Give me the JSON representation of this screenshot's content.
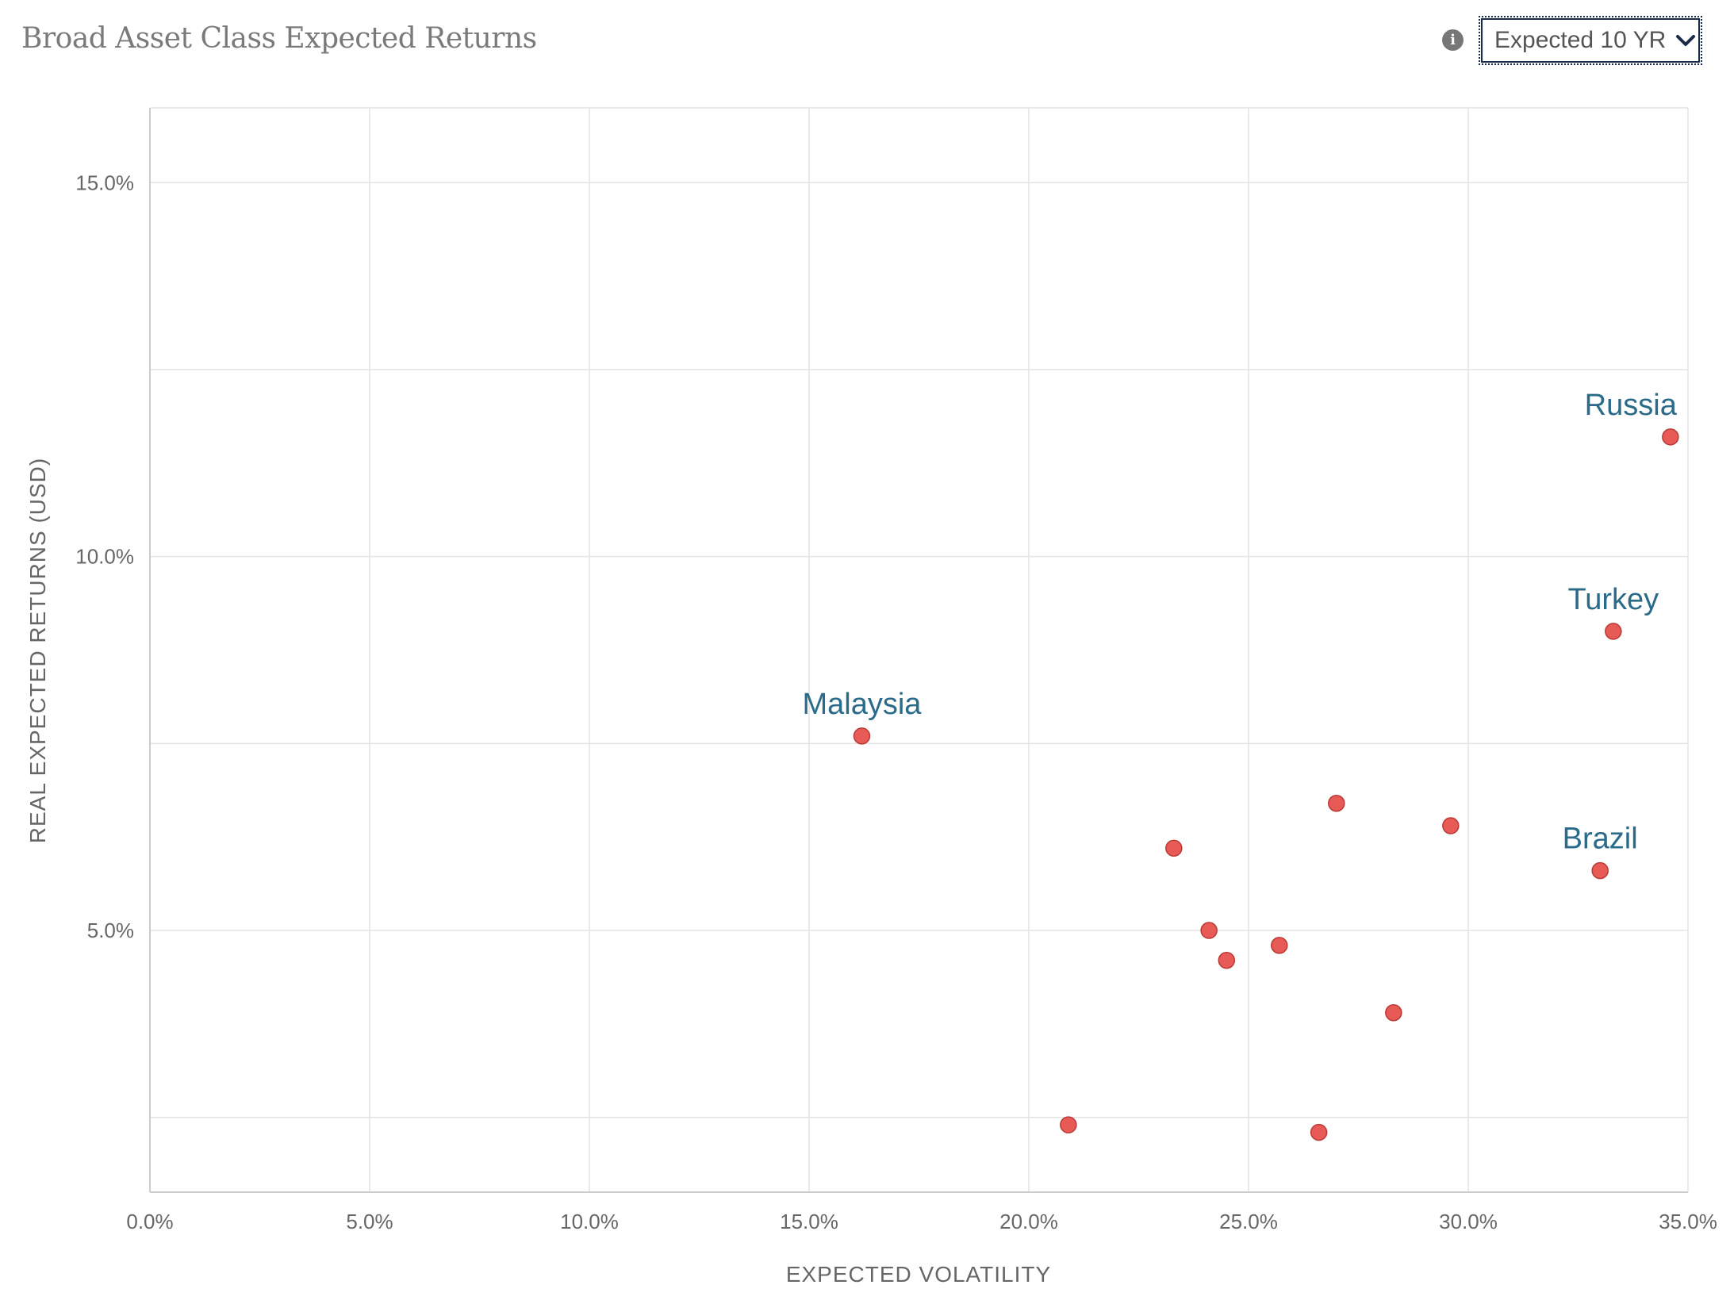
{
  "header": {
    "title": "Broad Asset Class Expected Returns",
    "info_icon_glyph": "i",
    "selector_label": "Expected 10 YR"
  },
  "chart_data": {
    "type": "scatter",
    "xlabel": "EXPECTED VOLATILITY",
    "ylabel": "REAL EXPECTED RETURNS (USD)",
    "xlim": [
      0,
      35
    ],
    "ylim": [
      1.5,
      16
    ],
    "x_ticks": [
      "0.0%",
      "5.0%",
      "10.0%",
      "15.0%",
      "20.0%",
      "25.0%",
      "30.0%",
      "35.0%"
    ],
    "y_ticks": [
      "5.0%",
      "10.0%",
      "15.0%"
    ],
    "grid": true,
    "point_color": "#e85a55",
    "label_color": "#2a6a8a",
    "points": [
      {
        "x": 34.6,
        "y": 11.6,
        "label": "Russia"
      },
      {
        "x": 33.3,
        "y": 9.0,
        "label": "Turkey"
      },
      {
        "x": 16.2,
        "y": 7.6,
        "label": "Malaysia"
      },
      {
        "x": 33.0,
        "y": 5.8,
        "label": "Brazil"
      },
      {
        "x": 27.0,
        "y": 6.7
      },
      {
        "x": 29.6,
        "y": 6.4
      },
      {
        "x": 23.3,
        "y": 6.1
      },
      {
        "x": 24.1,
        "y": 5.0
      },
      {
        "x": 25.7,
        "y": 4.8
      },
      {
        "x": 24.5,
        "y": 4.6
      },
      {
        "x": 28.3,
        "y": 3.9
      },
      {
        "x": 20.9,
        "y": 2.4
      },
      {
        "x": 26.6,
        "y": 2.3
      }
    ]
  }
}
